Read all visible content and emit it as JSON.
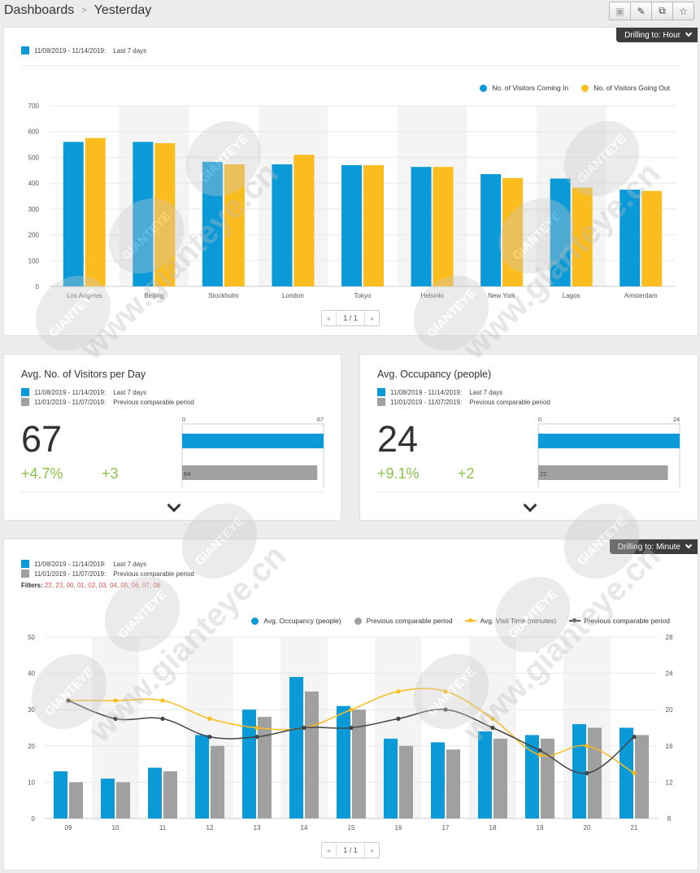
{
  "header": {
    "crumb_root": "Dashboards",
    "crumb_sep": ">",
    "crumb_current": "Yesterday",
    "tools": [
      {
        "icon": "save-icon",
        "glyph": "▣"
      },
      {
        "icon": "edit-icon",
        "glyph": "✎"
      },
      {
        "icon": "copy-icon",
        "glyph": "⧉"
      },
      {
        "icon": "star-icon",
        "glyph": "☆"
      }
    ]
  },
  "panel1": {
    "drill_label": "Drilling to: Hour",
    "period_current": "11/08/2019 - 11/14/2019:",
    "period_current_label": "Last 7 days",
    "pager": {
      "prev": "«",
      "page": "1 / 1",
      "next": "»"
    }
  },
  "kpi1": {
    "title": "Avg. No. of Visitors per Day",
    "period_current": "11/08/2019 - 11/14/2019:",
    "period_current_label": "Last 7 days",
    "period_prev": "11/01/2019 - 11/07/2019:",
    "period_prev_label": "Previous comparable period",
    "value": "67",
    "change_pct": "+4.7%",
    "change_abs": "+3",
    "bar_min_label": "0",
    "bar_max_label": "67",
    "prev_value_label": "64",
    "current": 67,
    "previous": 64,
    "max": 67
  },
  "kpi2": {
    "title": "Avg. Occupancy (people)",
    "period_current": "11/08/2019 - 11/14/2019:",
    "period_current_label": "Last 7 days",
    "period_prev": "11/01/2019 - 11/07/2019:",
    "period_prev_label": "Previous comparable period",
    "value": "24",
    "change_pct": "+9.1%",
    "change_abs": "+2",
    "bar_min_label": "0",
    "bar_max_label": "24",
    "prev_value_label": "22",
    "current": 24,
    "previous": 22,
    "max": 24
  },
  "panel3": {
    "drill_label": "Drilling to: Minute",
    "period_current": "11/08/2019 - 11/14/2019:",
    "period_current_label": "Last 7 days",
    "period_prev": "11/01/2019 - 11/07/2019:",
    "period_prev_label": "Previous comparable period",
    "filters_label": "Filters:",
    "filters_values": "22, 23, 00, 01, 02, 03, 04, 05, 06, 07, 08",
    "pager": {
      "prev": "«",
      "page": "1 / 1",
      "next": "»"
    }
  },
  "colors": {
    "blue": "#0b9ad8",
    "yellow": "#fbbc1d",
    "gray": "#a0a0a0",
    "dark": "#444444",
    "green": "#8bc34a",
    "red": "#e05050"
  },
  "watermark": {
    "text": "www.gianteye.cn",
    "seal": "GIANTEYE"
  },
  "chart_data": [
    {
      "type": "bar",
      "categories": [
        "Los Angeles",
        "Beijing",
        "Stockholm",
        "London",
        "Tokyo",
        "Helsinki",
        "New York",
        "Lagos",
        "Amsterdam"
      ],
      "series": [
        {
          "name": "No. of Visitors Coming In",
          "values": [
            560,
            560,
            483,
            473,
            470,
            463,
            435,
            418,
            375
          ]
        },
        {
          "name": "No. of Visitors Going Out",
          "values": [
            575,
            555,
            473,
            510,
            470,
            463,
            420,
            383,
            370
          ]
        }
      ],
      "yticks": [
        "0",
        "100",
        "200",
        "300",
        "400",
        "500",
        "600",
        "700"
      ],
      "ylim": [
        0,
        700
      ],
      "legend": "top-right",
      "grid": true
    },
    {
      "type": "bar",
      "categories": [
        "09",
        "10",
        "11",
        "12",
        "13",
        "14",
        "15",
        "16",
        "17",
        "18",
        "19",
        "20",
        "21"
      ],
      "series": [
        {
          "name": "Avg. Occupancy (people)",
          "type": "bar",
          "axis": "left",
          "values": [
            13,
            11,
            14,
            23,
            30,
            39,
            31,
            22,
            21,
            24,
            23,
            26,
            25
          ]
        },
        {
          "name": "Previous comparable period",
          "type": "bar",
          "axis": "left",
          "values": [
            10,
            10,
            13,
            20,
            28,
            35,
            30,
            20,
            19,
            22,
            22,
            25,
            23
          ]
        },
        {
          "name": "Avg. Visit Time (minutes)",
          "type": "line",
          "axis": "right",
          "values": [
            21,
            21,
            21,
            19,
            18,
            18,
            20,
            22,
            22,
            19,
            15,
            16,
            13
          ]
        },
        {
          "name": "Previous comparable period",
          "type": "line",
          "axis": "right",
          "values": [
            21,
            19,
            19,
            17,
            17,
            18,
            18,
            19,
            20,
            18,
            15.5,
            13,
            17
          ]
        }
      ],
      "yticks_left": [
        "0",
        "10",
        "20",
        "30",
        "40",
        "50"
      ],
      "yticks_right": [
        "8",
        "12",
        "16",
        "20",
        "24",
        "28"
      ],
      "ylim_left": [
        0,
        50
      ],
      "ylim_right": [
        8,
        28
      ],
      "legend": "top-right",
      "grid": true
    }
  ]
}
